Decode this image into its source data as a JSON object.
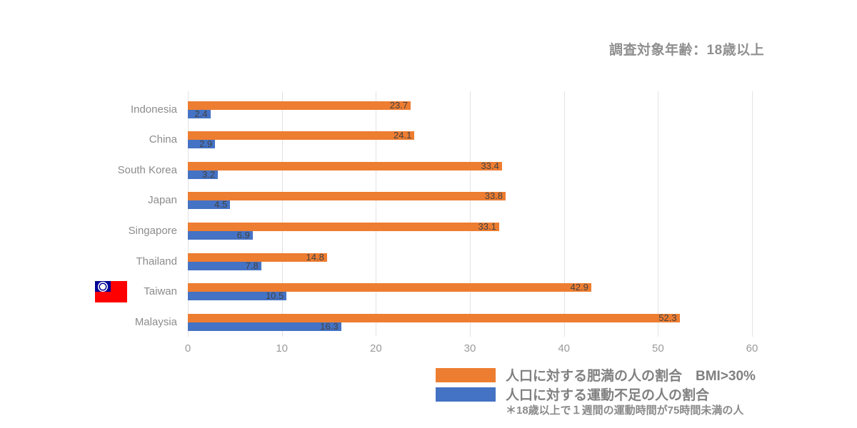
{
  "title": "調査対象年齢：18歳以上",
  "legend": {
    "obesity_label": "人口に対する肥満の人の割合　BMI>30%",
    "inactivity_label": "人口に対する運動不足の人の割合",
    "footnote": "＊18歳以上で１週間の運動時間が75時間未満の人"
  },
  "colors": {
    "obesity_bar": "#ED7D31",
    "inactivity_bar": "#4472C4",
    "grid_line": "#e3e3e3",
    "value_label_text": "#424242",
    "axis_text": "#9a9a9a",
    "title_text": "#8f8f8f",
    "flag_red": "#fe0000",
    "flag_blue": "#000095"
  },
  "chart_data": {
    "type": "bar",
    "orientation": "horizontal",
    "title": "調査対象年齢：18歳以上",
    "categories": [
      "Indonesia",
      "China",
      "South Korea",
      "Japan",
      "Singapore",
      "Thailand",
      "Taiwan",
      "Malaysia"
    ],
    "series": [
      {
        "name": "人口に対する肥満の人の割合　BMI>30%",
        "color": "#ED7D31",
        "values": [
          23.7,
          24.1,
          33.4,
          33.8,
          33.1,
          14.8,
          42.9,
          52.3
        ]
      },
      {
        "name": "人口に対する運動不足の人の割合",
        "color": "#4472C4",
        "values": [
          2.4,
          2.9,
          3.2,
          4.5,
          6.9,
          7.8,
          10.5,
          16.3
        ]
      }
    ],
    "x_ticks": [
      0,
      10,
      20,
      30,
      40,
      50,
      60
    ],
    "xlim": [
      0,
      60
    ],
    "grid": true,
    "legend_position": "bottom-right",
    "value_labels": "inside-end",
    "flag_category": "Taiwan",
    "footnote": "＊18歳以上で１週間の運動時間が75時間未満の人"
  }
}
